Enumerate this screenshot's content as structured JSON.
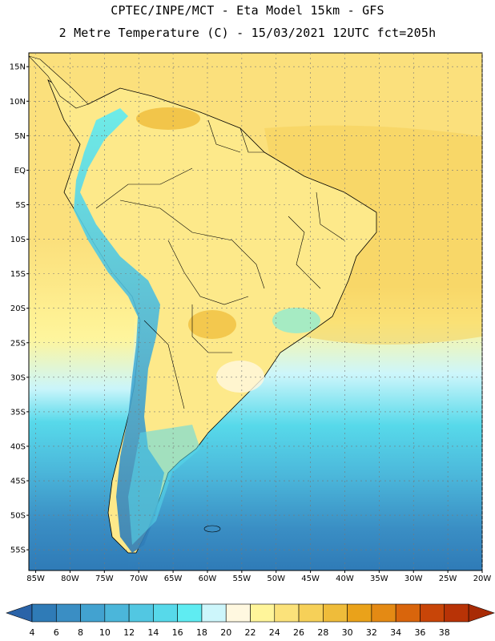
{
  "title_line_1": "CPTEC/INPE/MCT -  Eta Model 15km - GFS",
  "title_line_2": "2 Metre Temperature (C) - 15/03/2021 12UTC fct=205h",
  "map": {
    "region": "South America",
    "lon_range": [
      -86,
      -20
    ],
    "lat_range": [
      -58,
      17
    ],
    "lat_ticks": [
      "15N",
      "10N",
      "5N",
      "EQ",
      "5S",
      "10S",
      "15S",
      "20S",
      "25S",
      "30S",
      "35S",
      "40S",
      "45S",
      "50S",
      "55S"
    ],
    "lat_values": [
      15,
      10,
      5,
      0,
      -5,
      -10,
      -15,
      -20,
      -25,
      -30,
      -35,
      -40,
      -45,
      -50,
      -55
    ],
    "lon_ticks": [
      "85W",
      "80W",
      "75W",
      "70W",
      "65W",
      "60W",
      "55W",
      "50W",
      "45W",
      "40W",
      "35W",
      "30W",
      "25W",
      "20W"
    ],
    "lon_values": [
      -85,
      -80,
      -75,
      -70,
      -65,
      -60,
      -55,
      -50,
      -45,
      -40,
      -35,
      -30,
      -25,
      -20
    ]
  },
  "colorbar": {
    "labels": [
      "4",
      "6",
      "8",
      "10",
      "12",
      "14",
      "16",
      "18",
      "20",
      "22",
      "24",
      "26",
      "28",
      "30",
      "32",
      "34",
      "36",
      "38"
    ],
    "colors": [
      "#2f7bb7",
      "#3a8ec4",
      "#42a2d0",
      "#4bb6da",
      "#52c7e2",
      "#57d9ea",
      "#5fecf2",
      "#cdf6fb",
      "#fff8e0",
      "#fff59a",
      "#fbe27a",
      "#f6d058",
      "#efbc3a",
      "#eaa21a",
      "#e48a14",
      "#d9650c",
      "#c84508",
      "#b83306"
    ],
    "under_color": "#2a63a8",
    "over_color": "#a82b05"
  }
}
